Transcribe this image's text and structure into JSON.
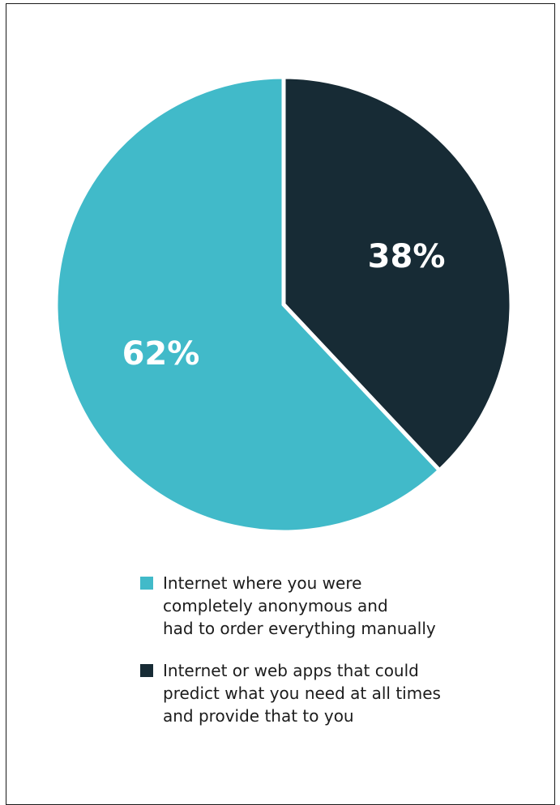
{
  "colors": {
    "teal": "#41bac9",
    "dark": "#172b35",
    "border": "#1a1a1a"
  },
  "chart_data": {
    "type": "pie",
    "title": "",
    "slices": [
      {
        "label_lines": [
          "Internet or web apps that could",
          "predict what you need at all times",
          "and provide that to you"
        ],
        "value": 38,
        "value_label": "38%",
        "color": "#172b35"
      },
      {
        "label_lines": [
          "Internet where you were",
          "completely anonymous and",
          "had to order everything manually"
        ],
        "value": 62,
        "value_label": "62%",
        "color": "#41bac9"
      }
    ],
    "legend_order": [
      1,
      0
    ],
    "start_angle_deg": 0,
    "direction": "clockwise",
    "legend_position": "bottom"
  }
}
